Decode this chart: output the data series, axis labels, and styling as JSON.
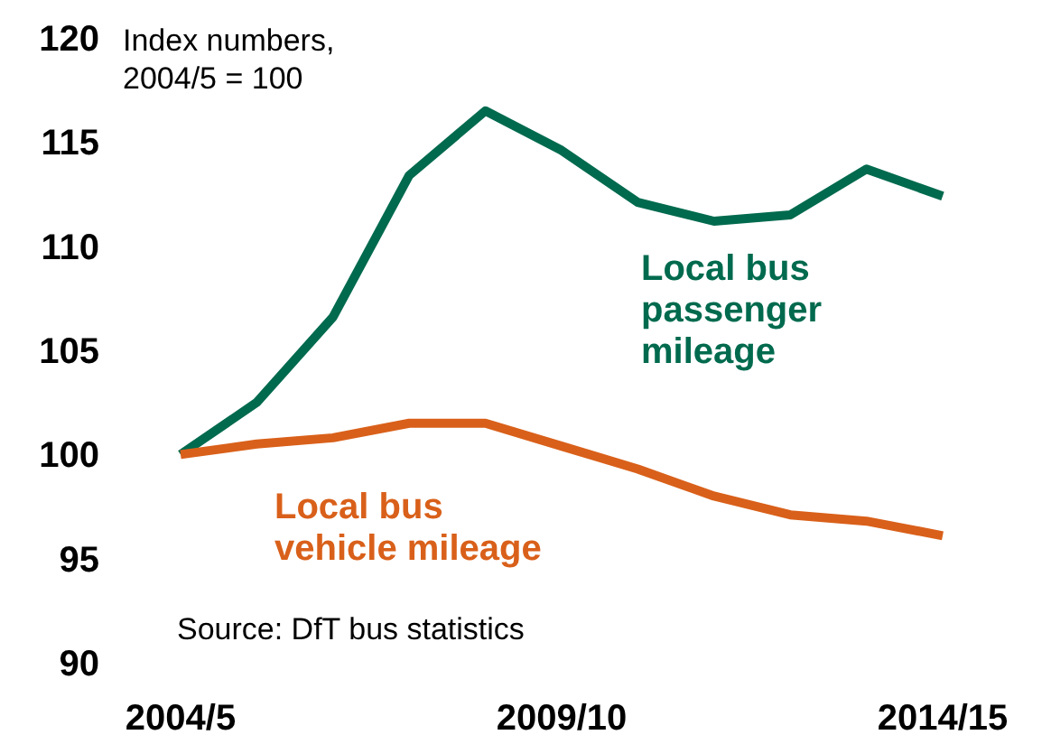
{
  "chart_data": {
    "type": "line",
    "ylabel": "Index numbers, 2004/5 = 100",
    "categories": [
      "2004/5",
      null,
      null,
      null,
      null,
      "2009/10",
      null,
      null,
      null,
      null,
      "2014/15"
    ],
    "series": [
      {
        "name": "Local bus passenger mileage",
        "color": "#006a4e",
        "values": [
          100,
          102.5,
          106.6,
          113.4,
          116.5,
          114.6,
          112.1,
          111.2,
          111.5,
          113.7,
          112.4
        ]
      },
      {
        "name": "Local bus vehicle mileage",
        "color": "#d9601a",
        "values": [
          100,
          100.5,
          100.8,
          101.5,
          101.5,
          100.4,
          99.3,
          98,
          97.1,
          96.8,
          96.1
        ]
      }
    ],
    "ylim": [
      90,
      120
    ],
    "yticks": [
      90,
      95,
      100,
      105,
      110,
      115,
      120
    ],
    "grid": false,
    "legend": false,
    "marker": "none",
    "line_style": "solid",
    "annotations": [
      "Source: DfT bus statistics"
    ]
  }
}
